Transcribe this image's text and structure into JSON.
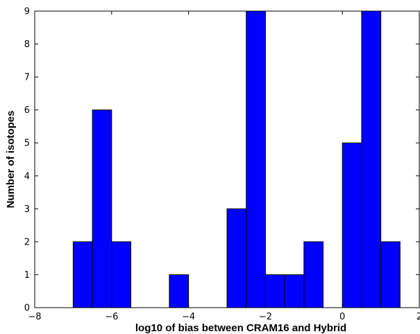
{
  "chart_data": {
    "type": "bar",
    "subtype": "histogram",
    "title": "",
    "xlabel": "log10 of bias between CRAM16 and Hybrid",
    "ylabel": "Number of isotopes",
    "xlim": [
      -8,
      2
    ],
    "ylim": [
      0,
      9
    ],
    "xticks": [
      -8,
      -6,
      -4,
      -2,
      0,
      2
    ],
    "xtick_labels": [
      "−8",
      "−6",
      "−4",
      "−2",
      "0",
      "2"
    ],
    "yticks": [
      0,
      1,
      2,
      3,
      4,
      5,
      6,
      7,
      8,
      9
    ],
    "ytick_labels": [
      "0",
      "1",
      "2",
      "3",
      "4",
      "5",
      "6",
      "7",
      "8",
      "9"
    ],
    "grid": false,
    "bar_color": "#0000ff",
    "edge_color": "#000000",
    "bins": [
      {
        "x0": -7.0,
        "x1": -6.5,
        "count": 2
      },
      {
        "x0": -6.5,
        "x1": -6.0,
        "count": 6
      },
      {
        "x0": -6.0,
        "x1": -5.5,
        "count": 2
      },
      {
        "x0": -4.5,
        "x1": -4.0,
        "count": 1
      },
      {
        "x0": -3.0,
        "x1": -2.5,
        "count": 3
      },
      {
        "x0": -2.5,
        "x1": -2.0,
        "count": 9
      },
      {
        "x0": -2.0,
        "x1": -1.5,
        "count": 1
      },
      {
        "x0": -1.5,
        "x1": -1.0,
        "count": 1
      },
      {
        "x0": -1.0,
        "x1": -0.5,
        "count": 2
      },
      {
        "x0": 0.0,
        "x1": 0.5,
        "count": 5
      },
      {
        "x0": 0.5,
        "x1": 1.0,
        "count": 9
      },
      {
        "x0": 1.0,
        "x1": 1.5,
        "count": 2
      }
    ]
  }
}
